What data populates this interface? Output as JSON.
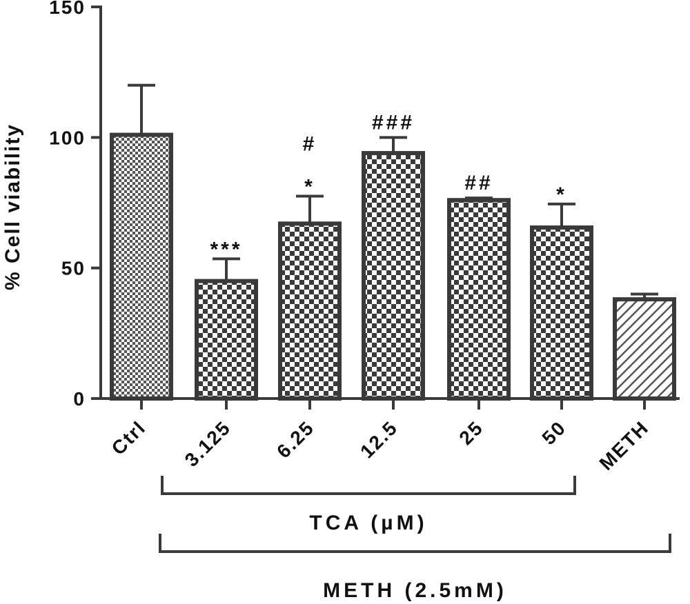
{
  "chart_data": {
    "type": "bar",
    "ylabel": "% Cell viability",
    "ylim": [
      0,
      150
    ],
    "yticks": [
      "0",
      "50",
      "100",
      "150"
    ],
    "categories": [
      "Ctrl",
      "3.125",
      "6.25",
      "12.5",
      "25",
      "50",
      "METH"
    ],
    "values": [
      101,
      45,
      67,
      94,
      76,
      65.5,
      38
    ],
    "errors": [
      19,
      8.5,
      10.5,
      6,
      0.8,
      9,
      2
    ],
    "patterns": [
      "fine-check",
      "check",
      "check",
      "check",
      "check",
      "check",
      "hatch"
    ],
    "significance": [
      [],
      [
        "***"
      ],
      [
        "*",
        "#"
      ],
      [
        "###"
      ],
      [
        "##"
      ],
      [
        "*"
      ],
      []
    ],
    "groups": [
      {
        "label": "TCA (µM)",
        "from": 1,
        "to": 5
      },
      {
        "label": "METH (2.5mM)",
        "from": 1,
        "to": 6
      }
    ],
    "colors": {
      "bar_edge": "#3a3a3a",
      "fill": "#3a3a3a",
      "background": "#ffffff"
    }
  }
}
